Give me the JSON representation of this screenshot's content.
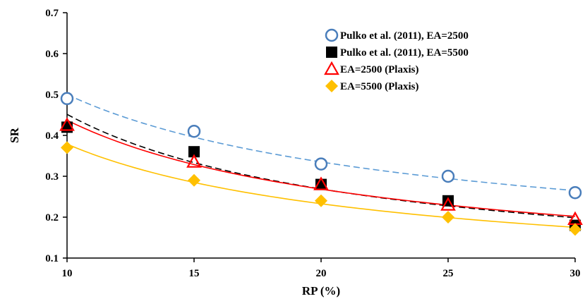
{
  "chart_data": {
    "type": "scatter",
    "title": "",
    "xlabel": "RP (%)",
    "ylabel": "SR",
    "xlim": [
      10,
      30
    ],
    "ylim": [
      0.1,
      0.7
    ],
    "x_ticks": [
      "10",
      "15",
      "20",
      "25",
      "30"
    ],
    "y_ticks": [
      "0.1",
      "0.2",
      "0.3",
      "0.4",
      "0.5",
      "0.6",
      "0.7"
    ],
    "grid": false,
    "legend_position": "top-right",
    "x": [
      10,
      15,
      20,
      25,
      30
    ],
    "series": [
      {
        "name": "Pulko et al. (2011), EA=2500",
        "marker": "circle-open",
        "color": "#4a7ebb",
        "trendline": "dashed",
        "trend_color": "#5b9bd5",
        "values": [
          0.49,
          0.41,
          0.33,
          0.3,
          0.26
        ]
      },
      {
        "name": "Pulko et al. (2011), EA=5500",
        "marker": "square-filled",
        "color": "#000000",
        "trendline": "dashed",
        "trend_color": "#000000",
        "values": [
          0.42,
          0.36,
          0.28,
          0.24,
          0.18
        ]
      },
      {
        "name": "EA=2500 (Plaxis)",
        "marker": "triangle-open",
        "color": "#ff0000",
        "trendline": "solid",
        "trend_color": "#ff0000",
        "values": [
          0.425,
          0.335,
          0.28,
          0.23,
          0.195
        ]
      },
      {
        "name": "EA=5500 (Plaxis)",
        "marker": "diamond-filled",
        "color": "#ffc000",
        "trendline": "solid",
        "trend_color": "#ffc000",
        "values": [
          0.37,
          0.29,
          0.24,
          0.2,
          0.17
        ]
      }
    ]
  }
}
